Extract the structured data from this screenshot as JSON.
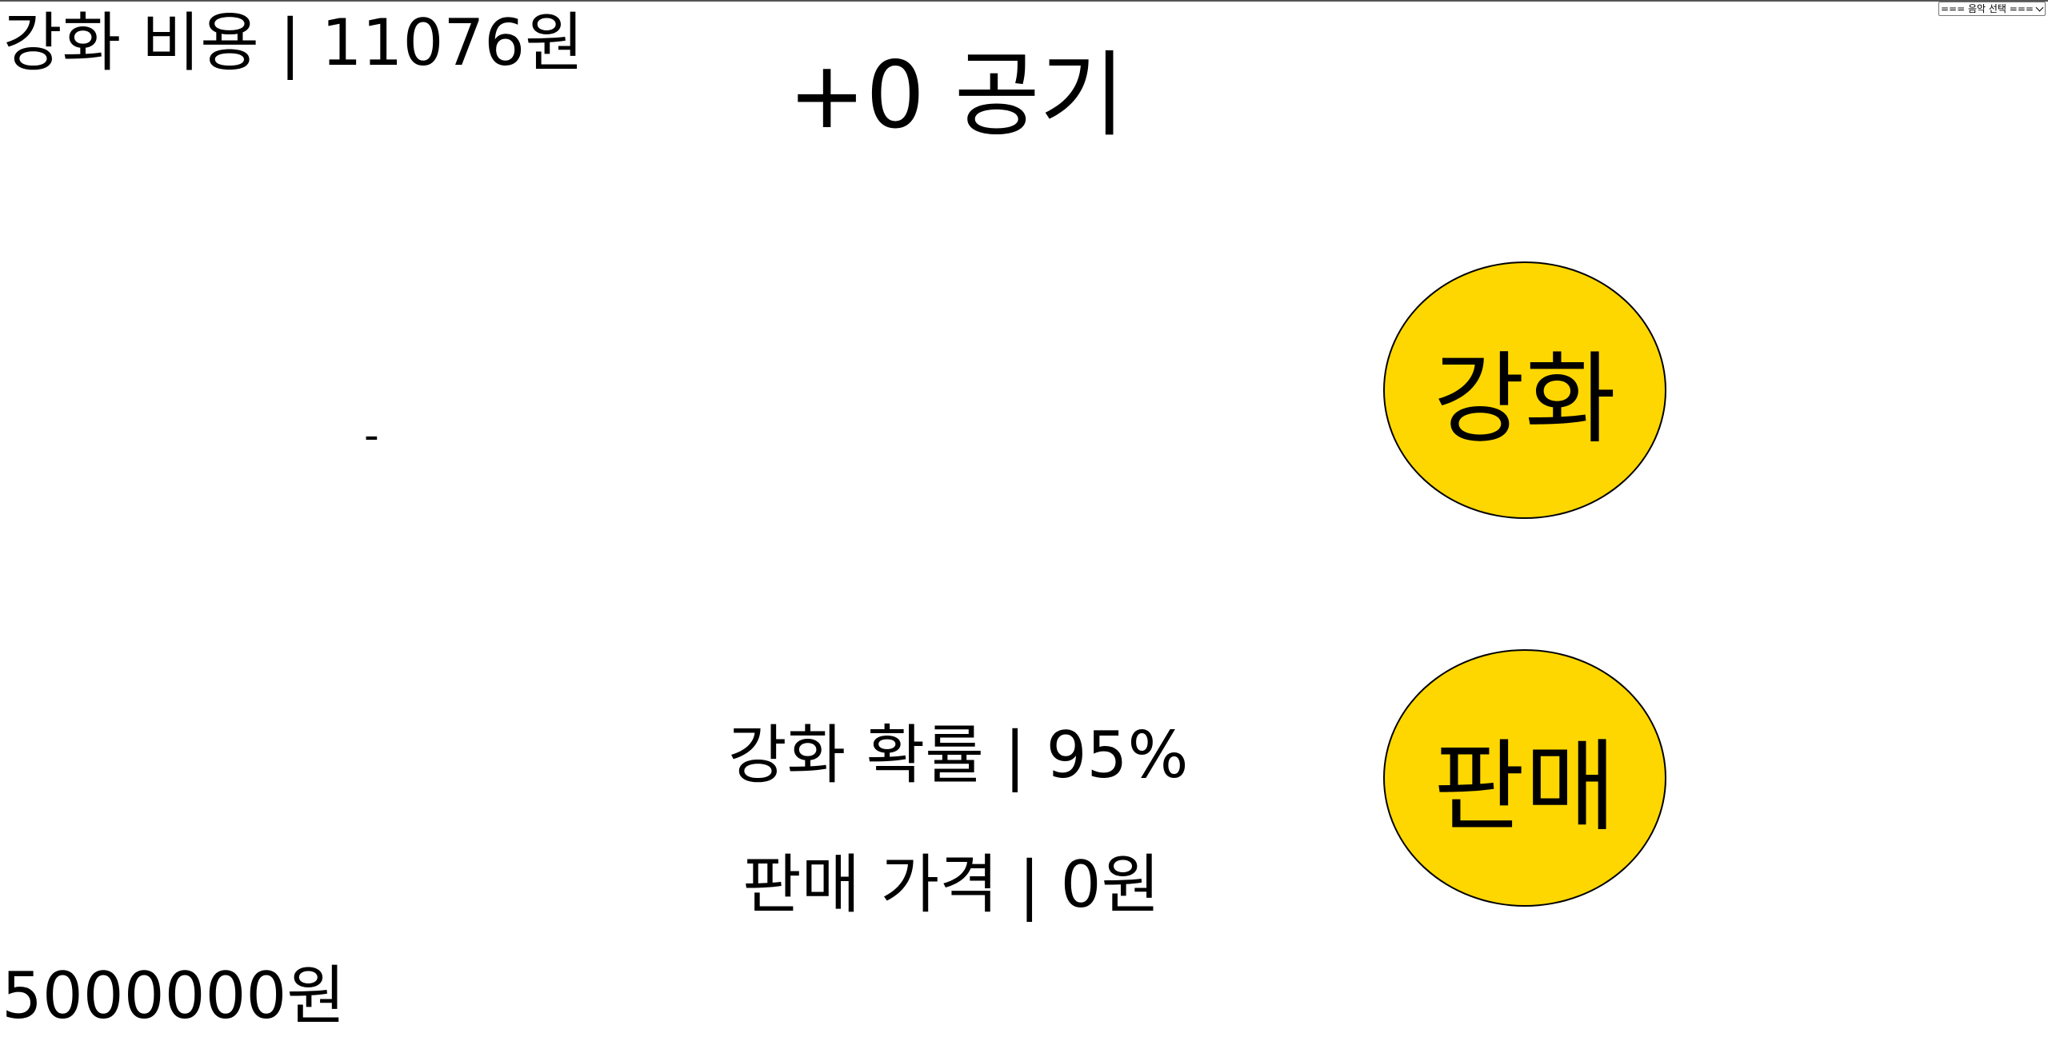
{
  "game": {
    "cost_text": "강화 비용 | 11076원",
    "item_title": "+0 공기",
    "item_display": "-",
    "enhance_button_label": "강화",
    "sell_button_label": "판매",
    "success_rate_text": "강화 확률 | 95%",
    "sell_price_text": "판매 가격 | 0원",
    "money_text": "5000000원"
  },
  "music": {
    "selected_option": "=== 음악 선택 ==="
  },
  "colors": {
    "button_fill": "#ffd700",
    "button_border": "#000000",
    "text": "#000000",
    "background": "#ffffff"
  },
  "icons": {
    "dropdown": "chevron-down-icon"
  }
}
